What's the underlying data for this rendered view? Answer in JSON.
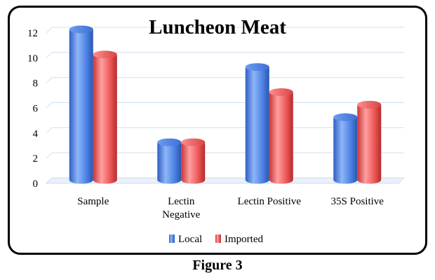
{
  "chart_data": {
    "type": "bar",
    "title": "Luncheon Meat",
    "categories": [
      "Sample",
      "Lectin\nNegative",
      "Lectin Positive",
      "35S Positive"
    ],
    "series": [
      {
        "name": "Local",
        "values": [
          12,
          3,
          9,
          5
        ],
        "color": "#4f86e6"
      },
      {
        "name": "Imported",
        "values": [
          10,
          3,
          7,
          6
        ],
        "color": "#ee5a5a"
      }
    ],
    "ylim": [
      0,
      12
    ],
    "yticks": [
      0,
      2,
      4,
      6,
      8,
      10,
      12
    ],
    "grid": true,
    "legend": "bottom",
    "style": "3d-cylinder"
  },
  "caption": "Figure 3"
}
